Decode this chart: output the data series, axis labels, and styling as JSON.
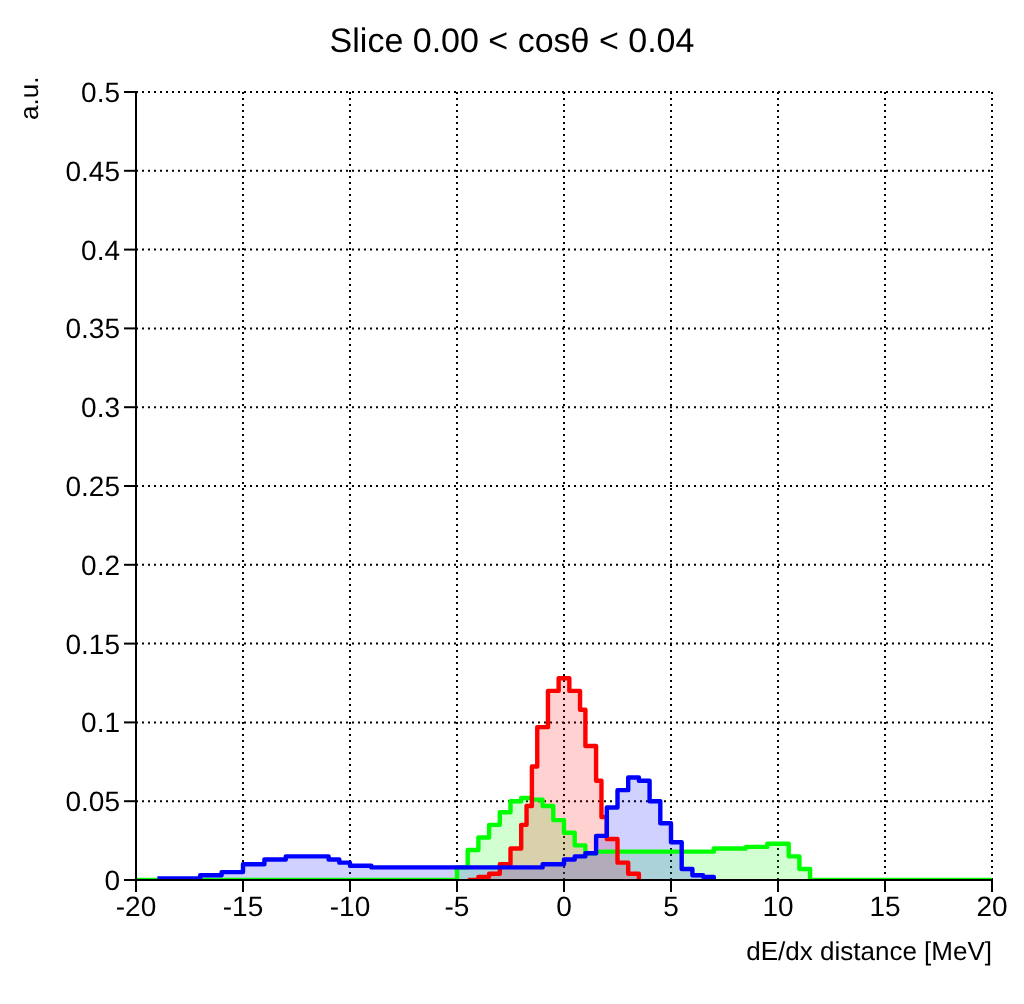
{
  "chart_data": {
    "type": "step",
    "title": "Slice 0.00 < cosθ < 0.04",
    "xlabel": "dE/dx distance [MeV]",
    "ylabel": "a.u.",
    "xlim": [
      -20,
      20
    ],
    "xticks": [
      -20,
      -15,
      -10,
      -5,
      0,
      5,
      10,
      15,
      20
    ],
    "ylim": [
      0,
      0.5
    ],
    "yticks": [
      0,
      0.05,
      0.1,
      0.15,
      0.2,
      0.25,
      0.3,
      0.35,
      0.4,
      0.45,
      0.5
    ],
    "grid": true,
    "legend": false,
    "series": [
      {
        "color": "#00ff00",
        "x": [
          -20,
          -5,
          -4.5,
          -4,
          -3.5,
          -3,
          -2.5,
          -2,
          -1.5,
          -1,
          -0.5,
          0,
          0.5,
          1,
          1.5,
          5,
          7,
          8.5,
          9.5,
          10.5,
          11,
          11.5,
          20
        ],
        "values": [
          0,
          0.008,
          0.019,
          0.027,
          0.035,
          0.043,
          0.05,
          0.052,
          0.051,
          0.047,
          0.038,
          0.03,
          0.022,
          0.017,
          0.018,
          0.018,
          0.02,
          0.021,
          0.023,
          0.015,
          0.007,
          0,
          0
        ]
      },
      {
        "color": "#ff0000",
        "x": [
          -4.5,
          -4,
          -3.5,
          -3,
          -2.5,
          -2,
          -1.75,
          -1.5,
          -1.25,
          -0.75,
          -0.25,
          0.25,
          0.75,
          1,
          1.5,
          1.75,
          2,
          2.5,
          3,
          3.5
        ],
        "values": [
          0,
          0.002,
          0.004,
          0.01,
          0.02,
          0.035,
          0.047,
          0.072,
          0.097,
          0.12,
          0.128,
          0.12,
          0.108,
          0.085,
          0.063,
          0.04,
          0.026,
          0.011,
          0.004,
          0
        ]
      },
      {
        "color": "#0000ff",
        "x": [
          -19,
          -17,
          -16,
          -15,
          -14,
          -13,
          -12,
          -11,
          -10.5,
          -10,
          -9,
          -8,
          -6,
          -4,
          -2,
          -1,
          0,
          0.5,
          1,
          1.5,
          2,
          2.5,
          3,
          3.5,
          4,
          4.5,
          5,
          5.5,
          6,
          6.5,
          7
        ],
        "values": [
          0.001,
          0.003,
          0.005,
          0.01,
          0.013,
          0.015,
          0.015,
          0.013,
          0.011,
          0.009,
          0.008,
          0.008,
          0.008,
          0.008,
          0.008,
          0.01,
          0.013,
          0.015,
          0.017,
          0.028,
          0.046,
          0.057,
          0.065,
          0.063,
          0.05,
          0.036,
          0.024,
          0.007,
          0.003,
          0.002,
          0
        ]
      }
    ]
  }
}
